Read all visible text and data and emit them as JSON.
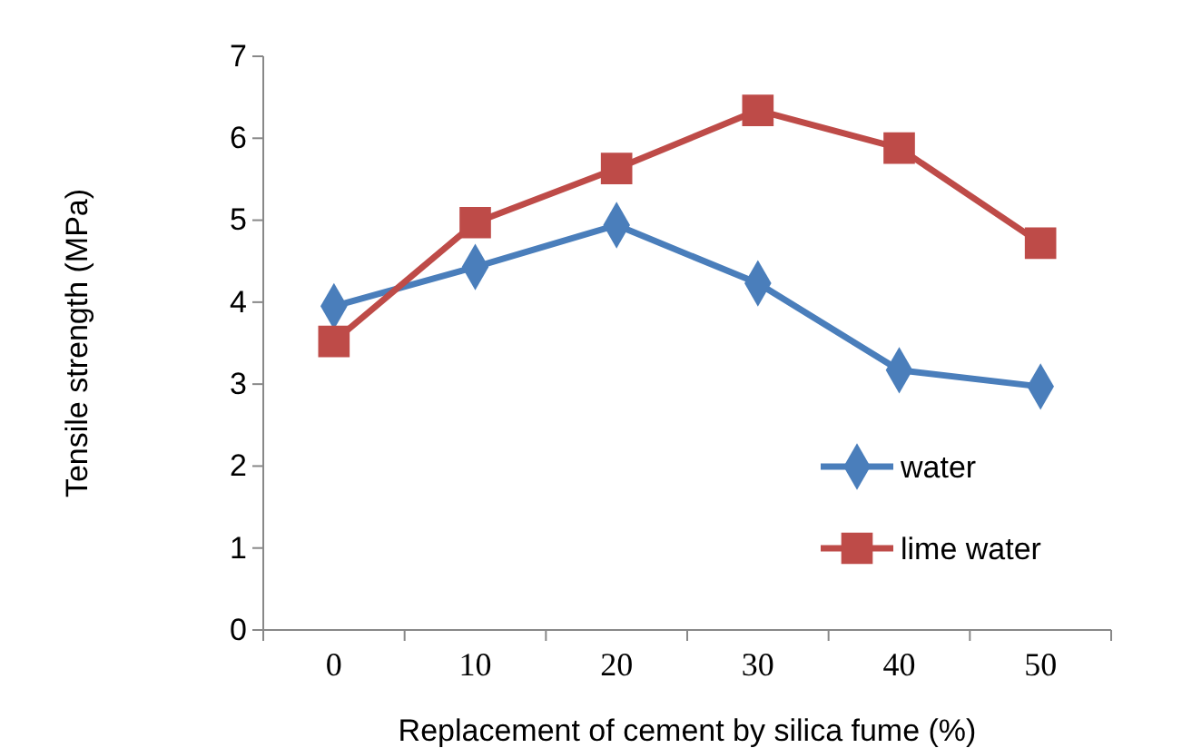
{
  "chart_data": {
    "type": "line",
    "xlabel": "Replacement of cement by silica fume (%)",
    "ylabel": "Tensile strength (MPa)",
    "categories": [
      "0",
      "10",
      "20",
      "30",
      "40",
      "50"
    ],
    "series": [
      {
        "name": "water",
        "color": "#4a7ebb",
        "marker": "diamond",
        "values": [
          3.95,
          4.43,
          4.94,
          4.23,
          3.17,
          2.97
        ]
      },
      {
        "name": "lime water",
        "color": "#be4b48",
        "marker": "square",
        "values": [
          3.52,
          4.97,
          5.63,
          6.34,
          5.88,
          4.72
        ]
      }
    ],
    "ylim": [
      0,
      7
    ],
    "yticks": [
      0,
      1,
      2,
      3,
      4,
      5,
      6,
      7
    ],
    "grid": false,
    "legend": "bottom right"
  }
}
